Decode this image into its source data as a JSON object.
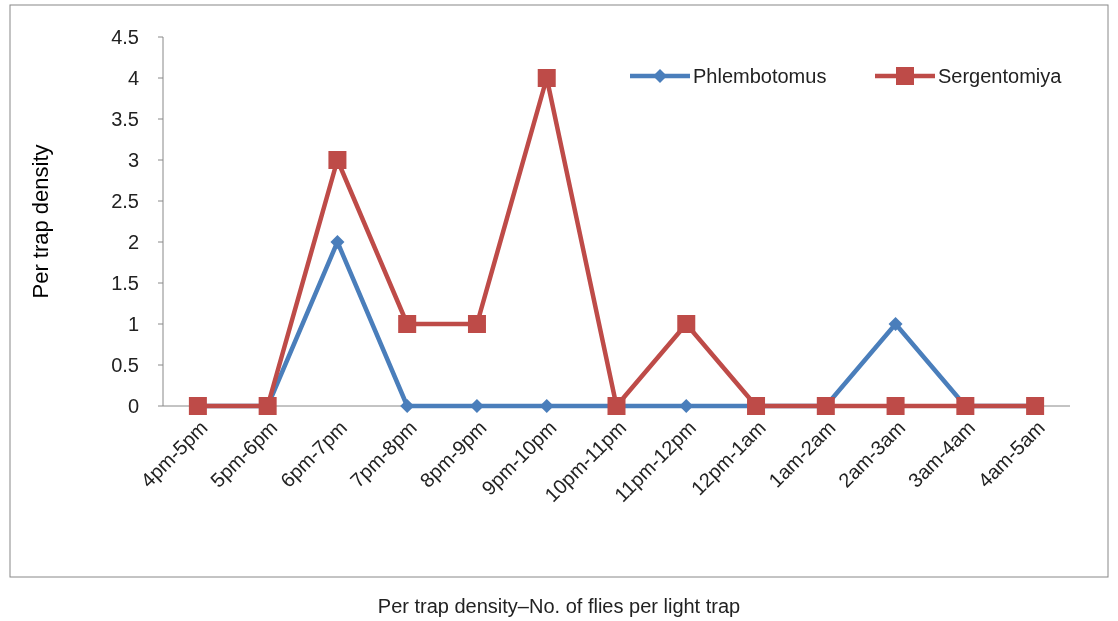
{
  "chart_data": {
    "type": "line",
    "ylabel": "Per trap density",
    "categories": [
      "4pm-5pm",
      "5pm-6pm",
      "6pm-7pm",
      "7pm-8pm",
      "8pm-9pm",
      "9pm-10pm",
      "10pm-11pm",
      "11pm-12pm",
      "12pm-1am",
      "1am-2am",
      "2am-3am",
      "3am-4am",
      "4am-5am"
    ],
    "series": [
      {
        "name": "Phlembotomus",
        "color": "#4a7ebb",
        "marker": "diamond",
        "values": [
          0,
          0,
          2,
          0,
          0,
          0,
          0,
          0,
          0,
          0,
          1,
          0,
          0
        ]
      },
      {
        "name": "Sergentomiya",
        "color": "#be4b48",
        "marker": "square",
        "values": [
          0,
          0,
          3,
          1,
          1,
          4,
          0,
          1,
          0,
          0,
          0,
          0,
          0
        ]
      }
    ],
    "ylim": [
      0,
      4.5
    ],
    "yticks": [
      0,
      0.5,
      1,
      1.5,
      2,
      2.5,
      3,
      3.5,
      4,
      4.5
    ],
    "legend": "top right",
    "annotations": [
      "Per trap density–No. of flies per light trap"
    ]
  }
}
